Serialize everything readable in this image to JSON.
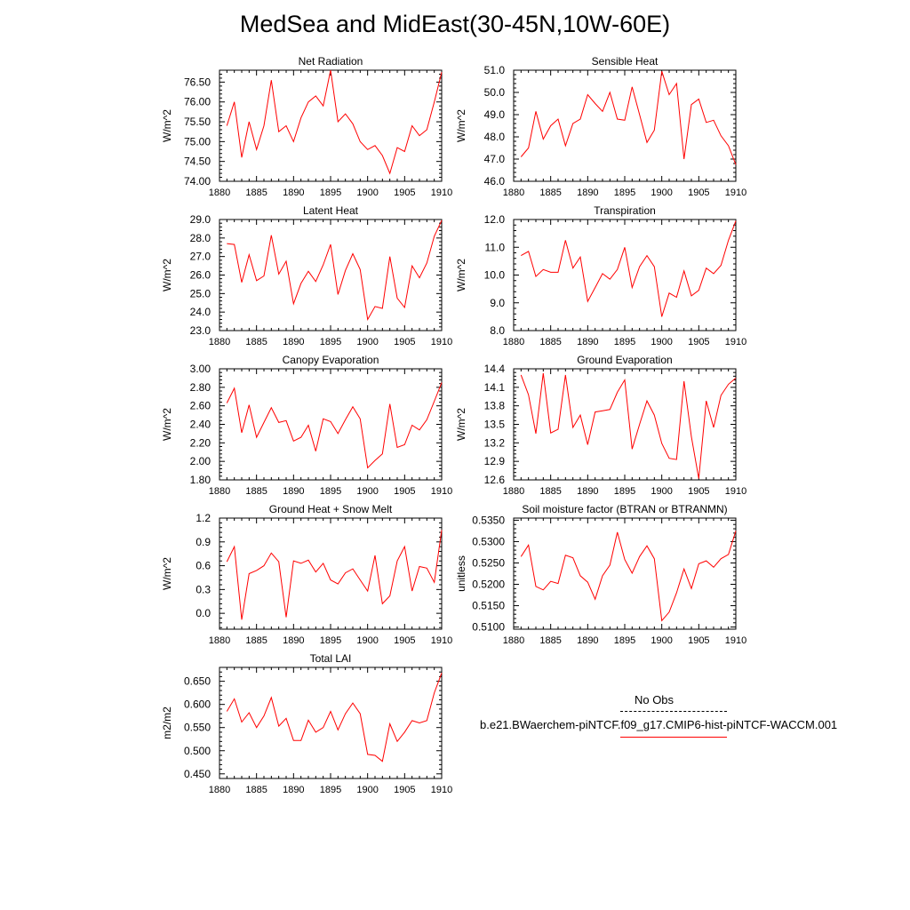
{
  "title": "MedSea and MidEast(30-45N,10W-60E)",
  "legend": {
    "obs_label": "No Obs",
    "case_label": "b.e21.BWaerchem-piNTCF.f09_g17.CMIP6-hist-piNTCF-WACCM.001"
  },
  "colors": {
    "series": "#ff0000",
    "axis": "#000000",
    "obs": "#000000"
  },
  "chart_data": [
    {
      "type": "line",
      "title": "Net Radiation",
      "ylabel": "W/m^2",
      "xlabel": "",
      "xlim": [
        1880,
        1910
      ],
      "ylim": [
        74.0,
        76.8
      ],
      "xticks": [
        1880,
        1885,
        1890,
        1895,
        1900,
        1905,
        1910
      ],
      "yticks": [
        74.0,
        74.5,
        75.0,
        75.5,
        76.0,
        76.5
      ],
      "ytick_labels": [
        "74.00",
        "74.50",
        "75.00",
        "75.50",
        "76.00",
        "76.50"
      ],
      "x": [
        1881,
        1882,
        1883,
        1884,
        1885,
        1886,
        1887,
        1888,
        1889,
        1890,
        1891,
        1892,
        1893,
        1894,
        1895,
        1896,
        1897,
        1898,
        1899,
        1900,
        1901,
        1902,
        1903,
        1904,
        1905,
        1906,
        1907,
        1908,
        1909,
        1910
      ],
      "series": [
        {
          "values": [
            75.4,
            76.0,
            74.6,
            75.5,
            74.8,
            75.4,
            76.55,
            75.25,
            75.4,
            75.0,
            75.6,
            76.0,
            76.15,
            75.9,
            76.8,
            75.5,
            75.7,
            75.45,
            75.0,
            74.8,
            74.9,
            74.65,
            74.2,
            74.85,
            74.75,
            75.4,
            75.15,
            75.3,
            76.0,
            76.75
          ]
        }
      ]
    },
    {
      "type": "line",
      "title": "Sensible Heat",
      "ylabel": "W/m^2",
      "xlabel": "",
      "xlim": [
        1880,
        1910
      ],
      "ylim": [
        46.0,
        51.0
      ],
      "xticks": [
        1880,
        1885,
        1890,
        1895,
        1900,
        1905,
        1910
      ],
      "yticks": [
        46.0,
        47.0,
        48.0,
        49.0,
        50.0,
        51.0
      ],
      "ytick_labels": [
        "46.0",
        "47.0",
        "48.0",
        "49.0",
        "50.0",
        "51.0"
      ],
      "x": [
        1881,
        1882,
        1883,
        1884,
        1885,
        1886,
        1887,
        1888,
        1889,
        1890,
        1891,
        1892,
        1893,
        1894,
        1895,
        1896,
        1897,
        1898,
        1899,
        1900,
        1901,
        1902,
        1903,
        1904,
        1905,
        1906,
        1907,
        1908,
        1909,
        1910
      ],
      "series": [
        {
          "values": [
            47.1,
            47.5,
            49.15,
            47.9,
            48.5,
            48.8,
            47.6,
            48.6,
            48.8,
            49.9,
            49.5,
            49.15,
            50.0,
            48.8,
            48.75,
            50.25,
            49.0,
            47.75,
            48.3,
            50.95,
            49.9,
            50.4,
            47.0,
            49.45,
            49.7,
            48.65,
            48.75,
            48.05,
            47.6,
            46.75
          ]
        }
      ]
    },
    {
      "type": "line",
      "title": "Latent Heat",
      "ylabel": "W/m^2",
      "xlabel": "",
      "xlim": [
        1880,
        1910
      ],
      "ylim": [
        23.0,
        29.0
      ],
      "xticks": [
        1880,
        1885,
        1890,
        1895,
        1900,
        1905,
        1910
      ],
      "yticks": [
        23.0,
        24.0,
        25.0,
        26.0,
        27.0,
        28.0,
        29.0
      ],
      "ytick_labels": [
        "23.0",
        "24.0",
        "25.0",
        "26.0",
        "27.0",
        "28.0",
        "29.0"
      ],
      "x": [
        1881,
        1882,
        1883,
        1884,
        1885,
        1886,
        1887,
        1888,
        1889,
        1890,
        1891,
        1892,
        1893,
        1894,
        1895,
        1896,
        1897,
        1898,
        1899,
        1900,
        1901,
        1902,
        1903,
        1904,
        1905,
        1906,
        1907,
        1908,
        1909,
        1910
      ],
      "series": [
        {
          "values": [
            27.7,
            27.65,
            25.6,
            27.1,
            25.7,
            25.95,
            28.15,
            26.05,
            26.75,
            24.45,
            25.55,
            26.2,
            25.65,
            26.55,
            27.65,
            24.95,
            26.25,
            27.15,
            26.3,
            23.6,
            24.3,
            24.2,
            27.0,
            24.75,
            24.25,
            26.5,
            25.85,
            26.65,
            28.1,
            28.95
          ]
        }
      ]
    },
    {
      "type": "line",
      "title": "Transpiration",
      "ylabel": "W/m^2",
      "xlabel": "",
      "xlim": [
        1880,
        1910
      ],
      "ylim": [
        8.0,
        12.0
      ],
      "xticks": [
        1880,
        1885,
        1890,
        1895,
        1900,
        1905,
        1910
      ],
      "yticks": [
        8.0,
        9.0,
        10.0,
        11.0,
        12.0
      ],
      "ytick_labels": [
        "8.0",
        "9.0",
        "10.0",
        "11.0",
        "12.0"
      ],
      "x": [
        1881,
        1882,
        1883,
        1884,
        1885,
        1886,
        1887,
        1888,
        1889,
        1890,
        1891,
        1892,
        1893,
        1894,
        1895,
        1896,
        1897,
        1898,
        1899,
        1900,
        1901,
        1902,
        1903,
        1904,
        1905,
        1906,
        1907,
        1908,
        1909,
        1910
      ],
      "series": [
        {
          "values": [
            10.7,
            10.85,
            9.95,
            10.2,
            10.1,
            10.1,
            11.25,
            10.25,
            10.65,
            9.05,
            9.55,
            10.05,
            9.85,
            10.2,
            11.0,
            9.55,
            10.3,
            10.7,
            10.3,
            8.5,
            9.35,
            9.2,
            10.15,
            9.25,
            9.45,
            10.25,
            10.05,
            10.35,
            11.25,
            11.95
          ]
        }
      ]
    },
    {
      "type": "line",
      "title": "Canopy Evaporation",
      "ylabel": "W/m^2",
      "xlabel": "",
      "xlim": [
        1880,
        1910
      ],
      "ylim": [
        1.8,
        3.0
      ],
      "xticks": [
        1880,
        1885,
        1890,
        1895,
        1900,
        1905,
        1910
      ],
      "yticks": [
        1.8,
        2.0,
        2.2,
        2.4,
        2.6,
        2.8,
        3.0
      ],
      "ytick_labels": [
        "1.80",
        "2.00",
        "2.20",
        "2.40",
        "2.60",
        "2.80",
        "3.00"
      ],
      "x": [
        1881,
        1882,
        1883,
        1884,
        1885,
        1886,
        1887,
        1888,
        1889,
        1890,
        1891,
        1892,
        1893,
        1894,
        1895,
        1896,
        1897,
        1898,
        1899,
        1900,
        1901,
        1902,
        1903,
        1904,
        1905,
        1906,
        1907,
        1908,
        1909,
        1910
      ],
      "series": [
        {
          "values": [
            2.63,
            2.79,
            2.31,
            2.61,
            2.26,
            2.42,
            2.58,
            2.42,
            2.44,
            2.22,
            2.26,
            2.39,
            2.11,
            2.46,
            2.43,
            2.3,
            2.45,
            2.59,
            2.46,
            1.93,
            2.01,
            2.08,
            2.62,
            2.15,
            2.18,
            2.39,
            2.34,
            2.45,
            2.65,
            2.85
          ]
        }
      ]
    },
    {
      "type": "line",
      "title": "Ground Evaporation",
      "ylabel": "W/m^2",
      "xlabel": "",
      "xlim": [
        1880,
        1910
      ],
      "ylim": [
        12.6,
        14.4
      ],
      "xticks": [
        1880,
        1885,
        1890,
        1895,
        1900,
        1905,
        1910
      ],
      "yticks": [
        12.6,
        12.9,
        13.2,
        13.5,
        13.8,
        14.1,
        14.4
      ],
      "ytick_labels": [
        "12.6",
        "12.9",
        "13.2",
        "13.5",
        "13.8",
        "14.1",
        "14.4"
      ],
      "x": [
        1881,
        1882,
        1883,
        1884,
        1885,
        1886,
        1887,
        1888,
        1889,
        1890,
        1891,
        1892,
        1893,
        1894,
        1895,
        1896,
        1897,
        1898,
        1899,
        1900,
        1901,
        1902,
        1903,
        1904,
        1905,
        1906,
        1907,
        1908,
        1909,
        1910
      ],
      "series": [
        {
          "values": [
            14.3,
            13.98,
            13.35,
            14.33,
            13.36,
            13.42,
            14.3,
            13.45,
            13.65,
            13.17,
            13.7,
            13.72,
            13.74,
            14.02,
            14.22,
            13.1,
            13.5,
            13.88,
            13.65,
            13.19,
            12.95,
            12.93,
            14.2,
            13.3,
            12.62,
            13.88,
            13.45,
            13.97,
            14.15,
            14.25
          ]
        }
      ]
    },
    {
      "type": "line",
      "title": "Ground Heat + Snow Melt",
      "ylabel": "W/m^2",
      "xlabel": "",
      "xlim": [
        1880,
        1910
      ],
      "ylim": [
        -0.2,
        1.2
      ],
      "xticks": [
        1880,
        1885,
        1890,
        1895,
        1900,
        1905,
        1910
      ],
      "yticks": [
        0.0,
        0.3,
        0.6,
        0.9,
        1.2
      ],
      "ytick_labels": [
        "0.0",
        "0.3",
        "0.6",
        "0.9",
        "1.2"
      ],
      "x": [
        1881,
        1882,
        1883,
        1884,
        1885,
        1886,
        1887,
        1888,
        1889,
        1890,
        1891,
        1892,
        1893,
        1894,
        1895,
        1896,
        1897,
        1898,
        1899,
        1900,
        1901,
        1902,
        1903,
        1904,
        1905,
        1906,
        1907,
        1908,
        1909,
        1910
      ],
      "series": [
        {
          "values": [
            0.65,
            0.84,
            -0.08,
            0.5,
            0.54,
            0.6,
            0.76,
            0.65,
            -0.05,
            0.66,
            0.63,
            0.67,
            0.52,
            0.63,
            0.42,
            0.37,
            0.51,
            0.56,
            0.42,
            0.28,
            0.73,
            0.12,
            0.22,
            0.66,
            0.84,
            0.28,
            0.59,
            0.57,
            0.39,
            1.05
          ]
        }
      ]
    },
    {
      "type": "line",
      "title": "Soil moisture factor (BTRAN or BTRANMN)",
      "ylabel": "unitless",
      "xlabel": "",
      "xlim": [
        1880,
        1910
      ],
      "ylim": [
        0.5095,
        0.5355
      ],
      "xticks": [
        1880,
        1885,
        1890,
        1895,
        1900,
        1905,
        1910
      ],
      "yticks": [
        0.51,
        0.515,
        0.52,
        0.525,
        0.53,
        0.535
      ],
      "ytick_labels": [
        "0.5100",
        "0.5150",
        "0.5200",
        "0.5250",
        "0.5300",
        "0.5350"
      ],
      "x": [
        1881,
        1882,
        1883,
        1884,
        1885,
        1886,
        1887,
        1888,
        1889,
        1890,
        1891,
        1892,
        1893,
        1894,
        1895,
        1896,
        1897,
        1898,
        1899,
        1900,
        1901,
        1902,
        1903,
        1904,
        1905,
        1906,
        1907,
        1908,
        1909,
        1910
      ],
      "series": [
        {
          "values": [
            0.5265,
            0.5292,
            0.5195,
            0.5187,
            0.5207,
            0.5202,
            0.5268,
            0.5262,
            0.522,
            0.5205,
            0.5165,
            0.522,
            0.5245,
            0.5322,
            0.5258,
            0.5226,
            0.5265,
            0.529,
            0.526,
            0.5115,
            0.5135,
            0.518,
            0.5236,
            0.519,
            0.5248,
            0.5255,
            0.524,
            0.526,
            0.527,
            0.5325
          ]
        }
      ]
    },
    {
      "type": "line",
      "title": "Total LAI",
      "ylabel": "m2/m2",
      "xlabel": "",
      "xlim": [
        1880,
        1910
      ],
      "ylim": [
        0.44,
        0.68
      ],
      "xticks": [
        1880,
        1885,
        1890,
        1895,
        1900,
        1905,
        1910
      ],
      "yticks": [
        0.45,
        0.5,
        0.55,
        0.6,
        0.65
      ],
      "ytick_labels": [
        "0.450",
        "0.500",
        "0.550",
        "0.600",
        "0.650"
      ],
      "x": [
        1881,
        1882,
        1883,
        1884,
        1885,
        1886,
        1887,
        1888,
        1889,
        1890,
        1891,
        1892,
        1893,
        1894,
        1895,
        1896,
        1897,
        1898,
        1899,
        1900,
        1901,
        1902,
        1903,
        1904,
        1905,
        1906,
        1907,
        1908,
        1909,
        1910
      ],
      "series": [
        {
          "values": [
            0.585,
            0.612,
            0.562,
            0.582,
            0.55,
            0.575,
            0.615,
            0.553,
            0.57,
            0.522,
            0.522,
            0.566,
            0.54,
            0.55,
            0.585,
            0.545,
            0.58,
            0.603,
            0.58,
            0.492,
            0.49,
            0.477,
            0.558,
            0.52,
            0.54,
            0.565,
            0.56,
            0.565,
            0.625,
            0.668
          ]
        }
      ]
    }
  ]
}
